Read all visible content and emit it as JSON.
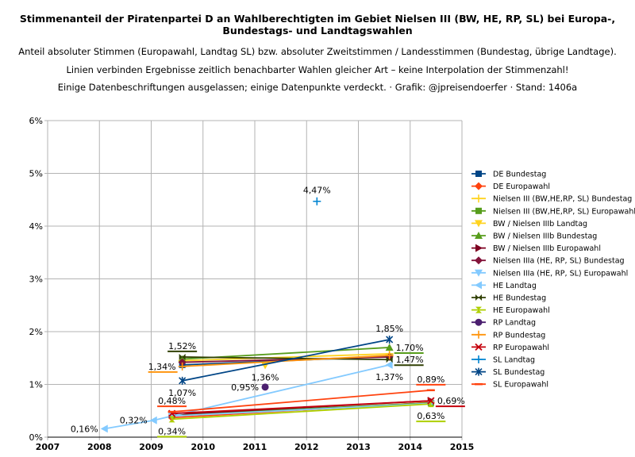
{
  "chart_data": {
    "type": "line",
    "title": "Stimmenanteil der Piratenpartei D an Wahlberechtigten im Gebiet Nielsen III (BW, HE, RP, SL) bei Europa-, Bundestags- und Landtagswahlen",
    "subtitles": [
      "Anteil absoluter Stimmen (Europawahl, Landtag SL) bzw. absoluter Zweitstimmen / Landesstimmen (Bundestag, übrige Landtage).",
      "Linien verbinden Ergebnisse zeitlich benachbarter Wahlen gleicher Art – keine Interpolation der Stimmenzahl!",
      "Einige Datenbeschriftungen ausgelassen; einige Datenpunkte verdeckt. · Grafik: @jpreisendoerfer · Stand: 1406a"
    ],
    "xlim": [
      2007,
      2015
    ],
    "ylim": [
      0,
      6
    ],
    "xticks": [
      "2007",
      "2008",
      "2009",
      "2010",
      "2011",
      "2012",
      "2013",
      "2014",
      "2015"
    ],
    "yticks": [
      "0%",
      "1%",
      "2%",
      "3%",
      "4%",
      "5%",
      "6%"
    ],
    "grid": true,
    "legend": "right",
    "series": [
      {
        "name": "DE Bundestag",
        "color": "#004586",
        "marker": "square",
        "points": [
          [
            2009.6,
            1.37
          ],
          [
            2013.6,
            1.53
          ]
        ]
      },
      {
        "name": "DE Europawahl",
        "color": "#ff420e",
        "marker": "diamond",
        "points": [
          [
            2009.4,
            0.37
          ],
          [
            2014.4,
            0.66
          ]
        ]
      },
      {
        "name": "Nielsen III (BW,HE,RP, SL) Bundestag",
        "color": "#ffd320",
        "marker": "plus",
        "points": [
          [
            2009.6,
            1.45
          ],
          [
            2013.6,
            1.58
          ]
        ]
      },
      {
        "name": "Nielsen III (BW,HE,RP, SL) Europawahl",
        "color": "#579d1c",
        "marker": "square",
        "points": [
          [
            2009.4,
            0.42
          ],
          [
            2014.4,
            0.65
          ]
        ]
      },
      {
        "name": "BW / Nielsen IIIb Landtag",
        "color": "#ffd320",
        "marker": "tri-down",
        "points": [
          [
            2011.2,
            1.36
          ]
        ]
      },
      {
        "name": "BW / Nielsen IIIb Bundestag",
        "color": "#579d1c",
        "marker": "tri-up",
        "points": [
          [
            2009.6,
            1.48
          ],
          [
            2013.6,
            1.7
          ]
        ]
      },
      {
        "name": "BW / Nielsen IIIb Europawahl",
        "color": "#7e0021",
        "marker": "tri-right",
        "points": [
          [
            2009.4,
            0.43
          ],
          [
            2014.4,
            0.69
          ]
        ]
      },
      {
        "name": "Nielsen IIIa (HE, RP, SL) Bundestag",
        "color": "#83133a",
        "marker": "diamond",
        "points": [
          [
            2009.6,
            1.42
          ],
          [
            2013.6,
            1.52
          ]
        ]
      },
      {
        "name": "Nielsen IIIa (HE, RP, SL) Europawahl",
        "color": "#83caff",
        "marker": "tri-down",
        "points": [
          [
            2009.4,
            0.4
          ],
          [
            2014.4,
            0.64
          ]
        ]
      },
      {
        "name": "HE Landtag",
        "color": "#83caff",
        "marker": "tri-left",
        "points": [
          [
            2008.1,
            0.16
          ],
          [
            2009.05,
            0.32
          ],
          [
            2013.6,
            1.37
          ]
        ]
      },
      {
        "name": "HE Bundestag",
        "color": "#314004",
        "marker": "bowtie",
        "points": [
          [
            2009.6,
            1.52
          ],
          [
            2013.6,
            1.47
          ]
        ]
      },
      {
        "name": "HE Europawahl",
        "color": "#aecf00",
        "marker": "hourglass",
        "points": [
          [
            2009.4,
            0.34
          ],
          [
            2014.4,
            0.63
          ]
        ]
      },
      {
        "name": "RP Landtag",
        "color": "#4b1f6f",
        "marker": "circle",
        "points": [
          [
            2011.2,
            0.95
          ]
        ]
      },
      {
        "name": "RP Bundestag",
        "color": "#ff950e",
        "marker": "plus",
        "points": [
          [
            2009.6,
            1.34
          ],
          [
            2013.6,
            1.55
          ]
        ]
      },
      {
        "name": "RP Europawahl",
        "color": "#c5000b",
        "marker": "x",
        "points": [
          [
            2009.4,
            0.45
          ],
          [
            2014.4,
            0.69
          ]
        ]
      },
      {
        "name": "SL Landtag",
        "color": "#0084d1",
        "marker": "plus",
        "points": [
          [
            2012.2,
            4.47
          ]
        ]
      },
      {
        "name": "SL Bundestag",
        "color": "#004586",
        "marker": "star",
        "points": [
          [
            2009.6,
            1.07
          ],
          [
            2013.6,
            1.85
          ]
        ]
      },
      {
        "name": "SL Europawahl",
        "color": "#ff420e",
        "marker": "dash",
        "points": [
          [
            2009.4,
            0.48
          ],
          [
            2014.4,
            0.89
          ]
        ]
      }
    ],
    "data_labels": [
      {
        "text": "4,47%",
        "x": 2012.2,
        "y": 4.47,
        "pos": "above",
        "underline": ""
      },
      {
        "text": "1,85%",
        "x": 2013.6,
        "y": 1.85,
        "pos": "above",
        "underline": ""
      },
      {
        "text": "1,70%",
        "x": 2013.6,
        "y": 1.7,
        "pos": "right",
        "underline": "#579d1c"
      },
      {
        "text": "1,47%",
        "x": 2013.6,
        "y": 1.47,
        "pos": "right",
        "underline": "#314004"
      },
      {
        "text": "1,37%",
        "x": 2013.6,
        "y": 1.37,
        "pos": "below",
        "underline": ""
      },
      {
        "text": "1,52%",
        "x": 2009.6,
        "y": 1.52,
        "pos": "above",
        "underline": "#314004"
      },
      {
        "text": "1,34%",
        "x": 2009.6,
        "y": 1.34,
        "pos": "left",
        "underline": "#ff950e"
      },
      {
        "text": "1,07%",
        "x": 2009.6,
        "y": 1.07,
        "pos": "below",
        "underline": ""
      },
      {
        "text": "1,36%",
        "x": 2011.2,
        "y": 1.36,
        "pos": "below",
        "underline": ""
      },
      {
        "text": "0,95%",
        "x": 2011.2,
        "y": 0.95,
        "pos": "left",
        "underline": ""
      },
      {
        "text": "0,89%",
        "x": 2014.4,
        "y": 0.89,
        "pos": "above",
        "underline": "#ff420e"
      },
      {
        "text": "0,69%",
        "x": 2014.4,
        "y": 0.69,
        "pos": "right",
        "underline": "#c5000b"
      },
      {
        "text": "0,63%",
        "x": 2014.4,
        "y": 0.63,
        "pos": "below",
        "underline": "#aecf00"
      },
      {
        "text": "0,48%",
        "x": 2009.4,
        "y": 0.48,
        "pos": "above",
        "underline": "#ff420e"
      },
      {
        "text": "0,34%",
        "x": 2009.4,
        "y": 0.34,
        "pos": "below",
        "underline": "#aecf00"
      },
      {
        "text": "0,32%",
        "x": 2009.05,
        "y": 0.32,
        "pos": "left",
        "underline": ""
      },
      {
        "text": "0,16%",
        "x": 2008.1,
        "y": 0.16,
        "pos": "left",
        "underline": ""
      }
    ]
  }
}
